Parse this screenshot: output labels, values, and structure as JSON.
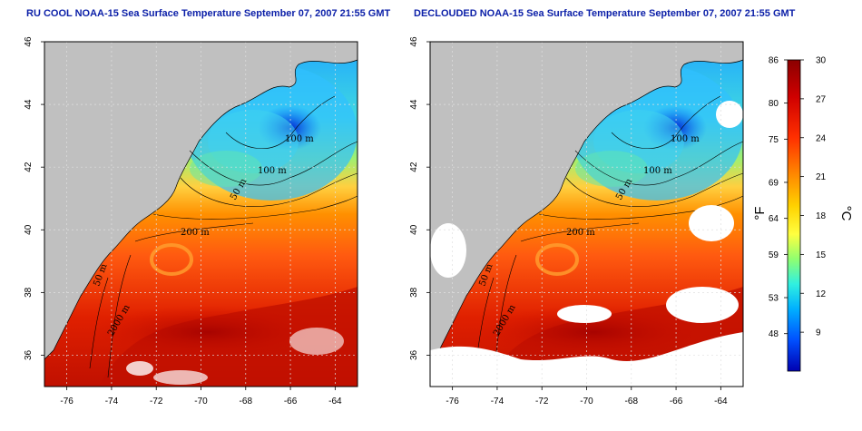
{
  "panels": [
    {
      "id": "left",
      "title": "RU COOL NOAA-15 Sea Surface Temperature September 07, 2007 21:55 GMT",
      "clouds": "masked gray over land only (raw)",
      "contour_labels": [
        "100 m",
        "100 m",
        "50 m",
        "200 m",
        "50 m",
        "2000 m"
      ]
    },
    {
      "id": "right",
      "title": "DECLOUDED NOAA-15 Sea Surface Temperature September 07, 2007 21:55 GMT",
      "clouds": "removed (white)",
      "contour_labels": [
        "100 m",
        "100 m",
        "50 m",
        "200 m",
        "50 m",
        "2000 m"
      ]
    }
  ],
  "axes": {
    "lon_ticks": [
      "-76",
      "-74",
      "-72",
      "-70",
      "-68",
      "-66",
      "-64"
    ],
    "lat_ticks": [
      "46",
      "44",
      "42",
      "40",
      "38",
      "36"
    ],
    "lon_range": [
      -77.0,
      -63.0
    ],
    "lat_range": [
      35.0,
      46.0
    ]
  },
  "colorbar": {
    "fahrenheit_labels": [
      "86",
      "80",
      "75",
      "69",
      "64",
      "59",
      "53",
      "48"
    ],
    "celsius_labels": [
      "30",
      "27",
      "24",
      "21",
      "18",
      "15",
      "12",
      "9"
    ],
    "fahrenheit_unit": "°F",
    "celsius_unit": "°C",
    "range_c": [
      6,
      30
    ],
    "colors": [
      "#0000c8",
      "#0050ff",
      "#00a0ff",
      "#00e0ff",
      "#40ffd0",
      "#a0ff60",
      "#ffff00",
      "#ffc000",
      "#ff8000",
      "#ff3000",
      "#d00000",
      "#900000"
    ]
  },
  "colors": {
    "land": "#c0c0c0",
    "cloud": "#ffffff",
    "title": "#0b1fa8",
    "grid": "#e8e8e8"
  }
}
